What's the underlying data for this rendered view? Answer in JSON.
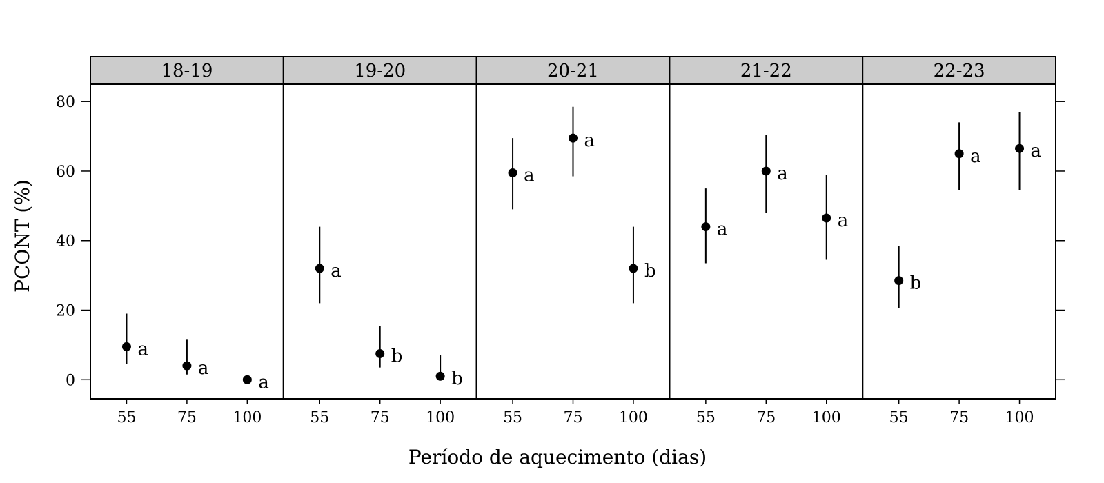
{
  "chart_data": {
    "type": "scatter",
    "xlabel": "Período de aquecimento (dias)",
    "ylabel": "PCONT (%)",
    "ylim": [
      -5.5,
      85
    ],
    "yticks": [
      0,
      20,
      40,
      60,
      80
    ],
    "categories": [
      "55",
      "75",
      "100"
    ],
    "grid": false,
    "legend": "none",
    "panels": [
      {
        "label": "18-19",
        "points": [
          {
            "x": "55",
            "y": 9.5,
            "lower": 4.5,
            "upper": 19,
            "letter": "a"
          },
          {
            "x": "75",
            "y": 4,
            "lower": 1.5,
            "upper": 11.5,
            "letter": "a"
          },
          {
            "x": "100",
            "y": 0,
            "lower": 0,
            "upper": 0,
            "letter": "a"
          }
        ]
      },
      {
        "label": "19-20",
        "points": [
          {
            "x": "55",
            "y": 32,
            "lower": 22,
            "upper": 44,
            "letter": "a"
          },
          {
            "x": "75",
            "y": 7.5,
            "lower": 3.5,
            "upper": 15.5,
            "letter": "b"
          },
          {
            "x": "100",
            "y": 1,
            "lower": 0,
            "upper": 7,
            "letter": "b"
          }
        ]
      },
      {
        "label": "20-21",
        "points": [
          {
            "x": "55",
            "y": 59.5,
            "lower": 49,
            "upper": 69.5,
            "letter": "a"
          },
          {
            "x": "75",
            "y": 69.5,
            "lower": 58.5,
            "upper": 78.5,
            "letter": "a"
          },
          {
            "x": "100",
            "y": 32,
            "lower": 22,
            "upper": 44,
            "letter": "b"
          }
        ]
      },
      {
        "label": "21-22",
        "points": [
          {
            "x": "55",
            "y": 44,
            "lower": 33.5,
            "upper": 55,
            "letter": "a"
          },
          {
            "x": "75",
            "y": 60,
            "lower": 48,
            "upper": 70.5,
            "letter": "a"
          },
          {
            "x": "100",
            "y": 46.5,
            "lower": 34.5,
            "upper": 59,
            "letter": "a"
          }
        ]
      },
      {
        "label": "22-23",
        "points": [
          {
            "x": "55",
            "y": 28.5,
            "lower": 20.5,
            "upper": 38.5,
            "letter": "b"
          },
          {
            "x": "75",
            "y": 65,
            "lower": 54.5,
            "upper": 74,
            "letter": "a"
          },
          {
            "x": "100",
            "y": 66.5,
            "lower": 54.5,
            "upper": 77,
            "letter": "a"
          }
        ]
      }
    ]
  }
}
